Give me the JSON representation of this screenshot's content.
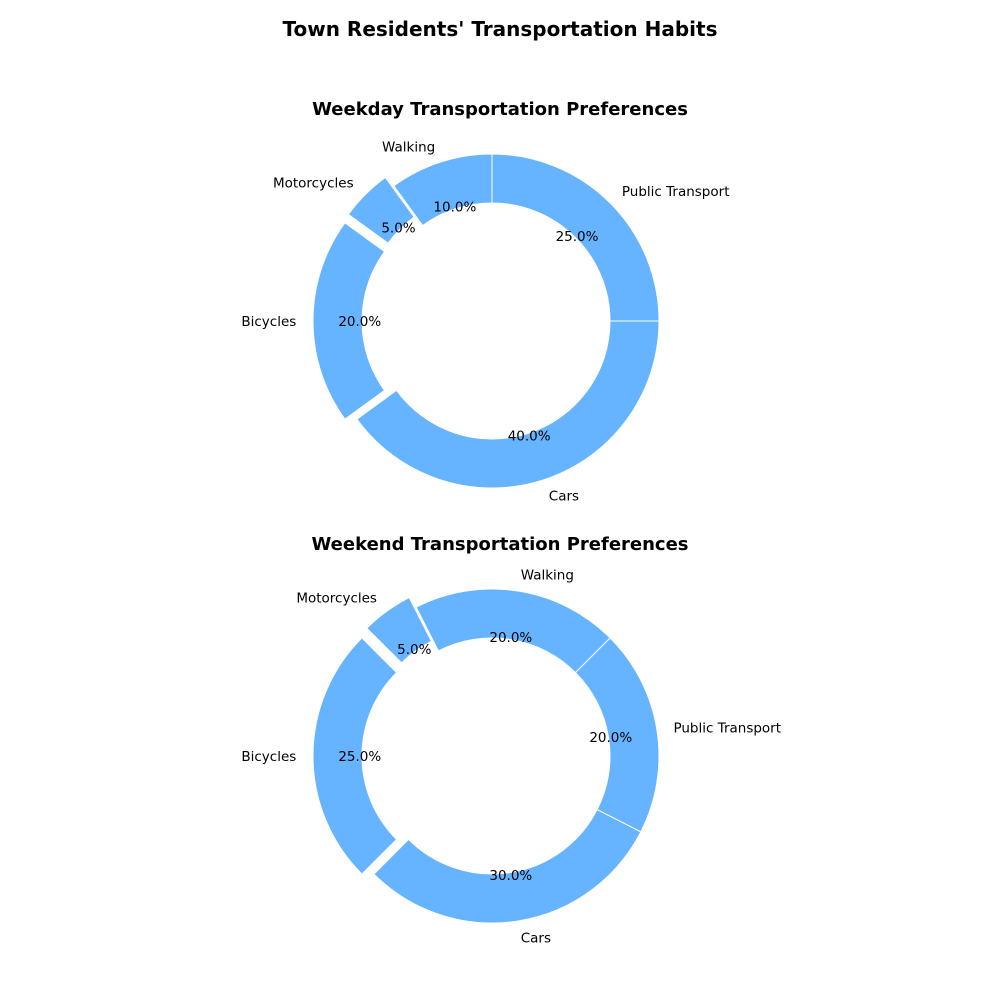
{
  "title": "Town Residents' Transportation Habits",
  "colors": {
    "wedge": "#66b3ff",
    "edge": "#ffffff"
  },
  "chart_data": [
    {
      "type": "pie",
      "style": "donut",
      "title": "Weekday Transportation Preferences",
      "categories": [
        "Cars",
        "Public Transport",
        "Walking",
        "Motorcycles",
        "Bicycles"
      ],
      "values": [
        40,
        25,
        10,
        5,
        20
      ],
      "percent_labels": [
        "40.0%",
        "25.0%",
        "10.0%",
        "5.0%",
        "20.0%"
      ],
      "exploded": [
        "Motorcycles",
        "Bicycles"
      ],
      "start_angle_deg": 216,
      "direction": "counterclockwise"
    },
    {
      "type": "pie",
      "style": "donut",
      "title": "Weekend Transportation Preferences",
      "categories": [
        "Cars",
        "Public Transport",
        "Walking",
        "Motorcycles",
        "Bicycles"
      ],
      "values": [
        30,
        20,
        20,
        5,
        25
      ],
      "percent_labels": [
        "30.0%",
        "20.0%",
        "20.0%",
        "5.0%",
        "25.0%"
      ],
      "exploded": [
        "Motorcycles",
        "Bicycles"
      ],
      "start_angle_deg": 225,
      "direction": "counterclockwise"
    }
  ]
}
